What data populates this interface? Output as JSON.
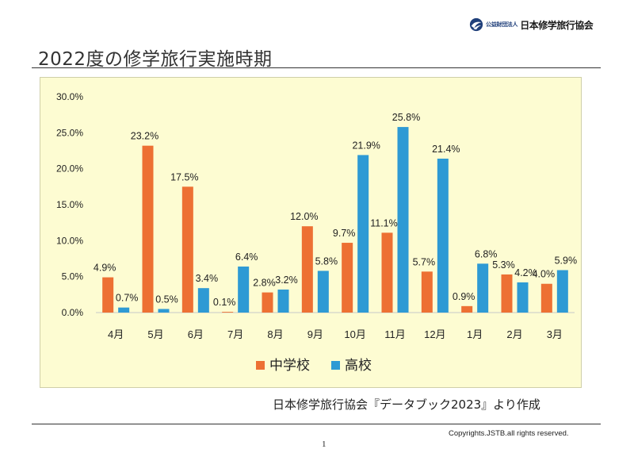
{
  "header": {
    "logo_prefix": "公益財団法人",
    "logo_name": "日本修学旅行協会",
    "title": "2022度の修学旅行実施時期"
  },
  "footer": {
    "source": "日本修学旅行協会『データブック2023』より作成",
    "copyright": "Copyrights.JSTB.all rights reserved.",
    "page_number": "1"
  },
  "colors": {
    "middle_school": "#ed7033",
    "high_school": "#2e9ad4",
    "panel_background": "#fdfcd2",
    "logo_blue": "#1f3f7a"
  },
  "chart_data": {
    "type": "bar",
    "categories": [
      "4月",
      "5月",
      "6月",
      "7月",
      "8月",
      "9月",
      "10月",
      "11月",
      "12月",
      "1月",
      "2月",
      "3月"
    ],
    "series": [
      {
        "name": "中学校",
        "color": "#ed7033",
        "values": [
          4.9,
          23.2,
          17.5,
          0.1,
          2.8,
          12.0,
          9.7,
          11.1,
          5.7,
          0.9,
          5.3,
          4.0
        ]
      },
      {
        "name": "高校",
        "color": "#2e9ad4",
        "values": [
          0.7,
          0.5,
          3.4,
          6.4,
          3.2,
          5.8,
          21.9,
          25.8,
          21.4,
          6.8,
          4.2,
          5.9
        ]
      }
    ],
    "yticks": [
      "0.0%",
      "5.0%",
      "10.0%",
      "15.0%",
      "20.0%",
      "25.0%",
      "30.0%"
    ],
    "ylim": [
      0,
      30
    ],
    "value_unit": "%",
    "legend_position": "bottom-center",
    "grid": false
  }
}
